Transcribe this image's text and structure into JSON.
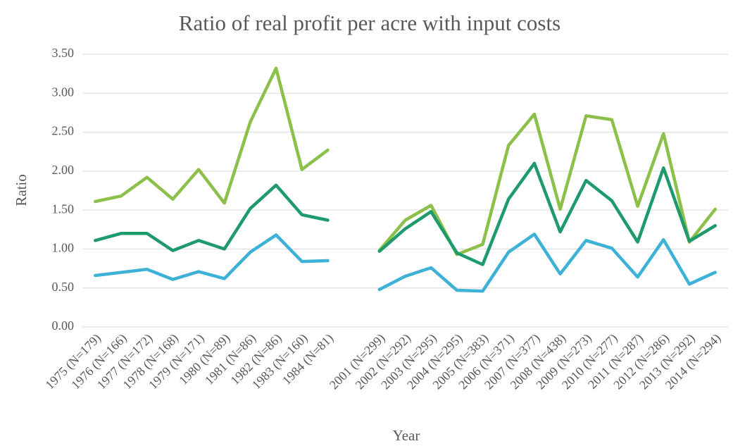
{
  "chart_data": {
    "type": "line",
    "title": "Ratio of real profit per acre with input costs",
    "x_label": "Year",
    "y_label": "Ratio",
    "categories": [
      "1975 (N=179)",
      "1976 (N=166)",
      "1977 (N=172)",
      "1978 (N=168)",
      "1979 (N=171)",
      "1980 (N=89)",
      "1981 (N=86)",
      "1982 (N=86)",
      "1983 (N=160)",
      "1984 (N=81)",
      null,
      "2001 (N=299)",
      "2002 (N=292)",
      "2003 (N=295)",
      "2004 (N=295)",
      "2005 (N=383)",
      "2006 (N=371)",
      "2007 (N=377)",
      "2008 (N=438)",
      "2009 (N=273)",
      "2010 (N=277)",
      "2011 (N=287)",
      "2012 (N=286)",
      "2013 (N=292)",
      "2014 (N=294)"
    ],
    "series": [
      {
        "color": "#8cc04b",
        "values": [
          1.61,
          1.68,
          1.92,
          1.64,
          2.02,
          1.59,
          2.63,
          3.32,
          2.02,
          2.27,
          null,
          0.98,
          1.37,
          1.56,
          0.93,
          1.06,
          2.33,
          2.73,
          1.51,
          2.71,
          2.66,
          1.55,
          2.48,
          1.09,
          1.51
        ]
      },
      {
        "color": "#1e9a6c",
        "values": [
          1.11,
          1.2,
          1.2,
          0.98,
          1.11,
          1.0,
          1.52,
          1.82,
          1.44,
          1.37,
          null,
          0.97,
          1.26,
          1.48,
          0.95,
          0.8,
          1.64,
          2.1,
          1.22,
          1.88,
          1.62,
          1.09,
          2.04,
          1.1,
          1.3
        ]
      },
      {
        "color": "#3db1d6",
        "values": [
          0.66,
          0.7,
          0.74,
          0.61,
          0.71,
          0.62,
          0.96,
          1.18,
          0.84,
          0.85,
          null,
          0.48,
          0.65,
          0.76,
          0.47,
          0.46,
          0.96,
          1.19,
          0.68,
          1.11,
          1.01,
          0.64,
          1.12,
          0.55,
          0.7
        ]
      }
    ],
    "ylim": [
      0,
      3.5
    ],
    "yticks": [
      {
        "value": 0,
        "label": "0.00"
      },
      {
        "value": 0.5,
        "label": "0.50"
      },
      {
        "value": 1,
        "label": "1.00"
      },
      {
        "value": 1.5,
        "label": "1.50"
      },
      {
        "value": 2,
        "label": "2.00"
      },
      {
        "value": 2.5,
        "label": "2.50"
      },
      {
        "value": 3,
        "label": "3.00"
      },
      {
        "value": 3.5,
        "label": "3.50"
      }
    ],
    "grid": true
  }
}
